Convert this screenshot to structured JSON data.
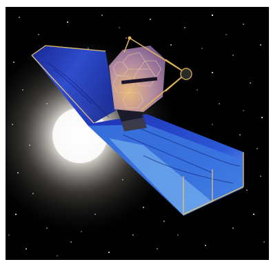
{
  "image": {
    "subject-icon": "space-telescope-icon",
    "colors": {
      "border": "#ffffff",
      "space": "#000000",
      "glow": "#ffffff",
      "sunshield": "#2b49d8",
      "sunshield_dark": "#0f1a6e",
      "mirror": "#c99a6e",
      "frame": "#d8b056"
    }
  }
}
